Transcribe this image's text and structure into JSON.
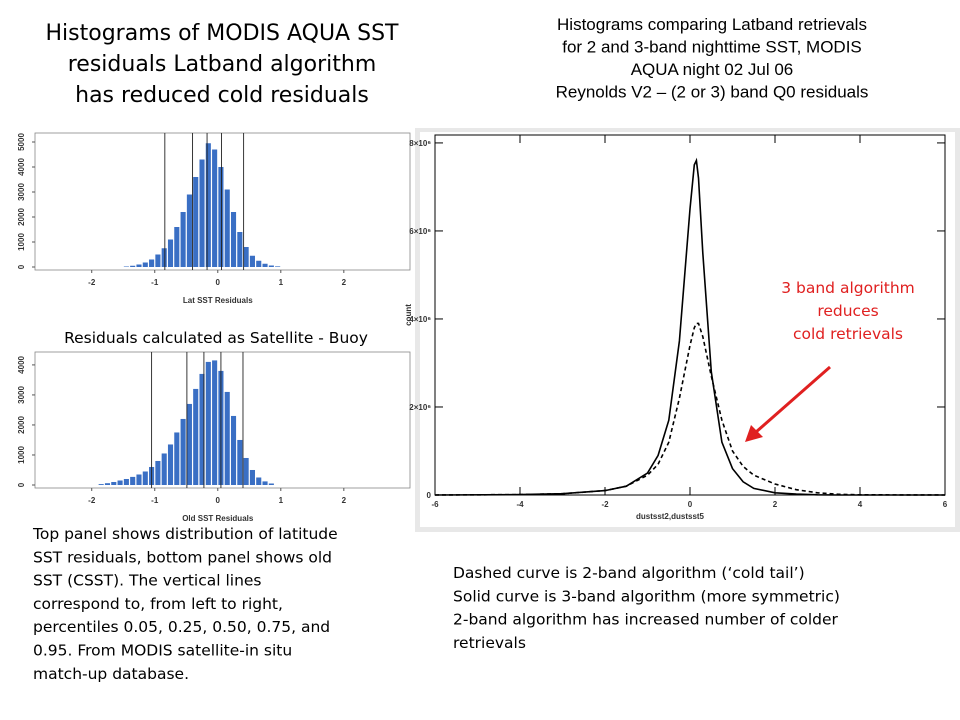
{
  "title_left": [
    "Histograms of MODIS AQUA SST",
    "residuals Latband algorithm",
    "has reduced cold residuals"
  ],
  "title_right": [
    "Histograms comparing Latband retrievals",
    "for 2 and 3-band nighttime SST, MODIS",
    "AQUA night 02 Jul 06",
    "Reynolds V2 – (2 or 3) band Q0 residuals"
  ],
  "middle_note": "Residuals calculated as Satellite - Buoy",
  "caption_left": [
    "Top panel shows distribution of latitude",
    "SST residuals, bottom panel shows old",
    "SST (CSST). The vertical lines",
    "correspond to, from left to right,",
    "percentiles 0.05, 0.25, 0.50, 0.75, and",
    "0.95.  From MODIS satellite-in situ",
    "match-up database."
  ],
  "caption_right": [
    "Dashed curve is 2-band algorithm (‘cold tail’)",
    "Solid curve is 3-band algorithm (more symmetric)",
    "2-band algorithm has increased number of colder",
    "retrievals"
  ],
  "annotation": [
    "3 band algorithm",
    "reduces",
    "cold retrievals"
  ],
  "chart_data": [
    {
      "type": "histogram",
      "x_label": "Lat SST Residuals",
      "bins": [
        -1.5,
        -1.4,
        -1.3,
        -1.2,
        -1.1,
        -1.0,
        -0.9,
        -0.8,
        -0.7,
        -0.6,
        -0.5,
        -0.4,
        -0.3,
        -0.2,
        -0.1,
        0.0,
        0.1,
        0.2,
        0.3,
        0.4,
        0.5,
        0.6,
        0.7,
        0.8,
        0.9,
        1.0
      ],
      "counts": [
        20,
        50,
        100,
        180,
        300,
        500,
        750,
        1100,
        1600,
        2200,
        2900,
        3600,
        4300,
        4950,
        4700,
        4000,
        3100,
        2200,
        1400,
        800,
        450,
        250,
        130,
        60,
        25
      ],
      "vlines": [
        -0.84,
        -0.4,
        -0.17,
        0.06,
        0.41
      ],
      "color": "#3a6fc4",
      "xlim": [
        -2.9,
        3.05
      ],
      "xticks": [
        -2,
        -1,
        0,
        1,
        2
      ],
      "ylim": [
        0,
        5360
      ],
      "yticks": [
        0,
        1000,
        2000,
        3000,
        4000,
        5000
      ]
    },
    {
      "type": "histogram",
      "x_label": "Old SST Residuals",
      "bins": [
        -1.9,
        -1.8,
        -1.7,
        -1.6,
        -1.5,
        -1.4,
        -1.3,
        -1.2,
        -1.1,
        -1.0,
        -0.9,
        -0.8,
        -0.7,
        -0.6,
        -0.5,
        -0.4,
        -0.3,
        -0.2,
        -0.1,
        0.0,
        0.1,
        0.2,
        0.3,
        0.4,
        0.5,
        0.6,
        0.7,
        0.8,
        0.9
      ],
      "counts": [
        30,
        60,
        100,
        150,
        200,
        270,
        350,
        450,
        600,
        800,
        1050,
        1350,
        1750,
        2200,
        2700,
        3200,
        3700,
        4100,
        4150,
        3800,
        3100,
        2300,
        1500,
        900,
        500,
        250,
        120,
        50
      ],
      "vlines": [
        -1.05,
        -0.49,
        -0.22,
        0.05,
        0.4
      ],
      "color": "#3a6fc4",
      "xlim": [
        -2.9,
        3.05
      ],
      "xticks": [
        -2,
        -1,
        0,
        1,
        2
      ],
      "ylim": [
        0,
        4430
      ],
      "yticks": [
        0,
        1000,
        2000,
        3000,
        4000
      ]
    },
    {
      "type": "line",
      "x_label": "dustsst2,dustsst5",
      "y_label": "count",
      "x": [
        -6,
        -4,
        -3,
        -2,
        -1.5,
        -1,
        -0.75,
        -0.5,
        -0.25,
        0,
        0.1,
        0.15,
        0.2,
        0.3,
        0.5,
        0.75,
        1,
        1.25,
        1.5,
        2,
        2.5,
        3,
        3.5,
        4,
        6
      ],
      "series": [
        {
          "color": "#000000",
          "dash": false,
          "values": [
            0,
            10000,
            30000,
            100000,
            200000,
            500000,
            900000,
            1700000,
            3500000,
            6500000,
            7500000,
            7600000,
            7200000,
            5500000,
            2800000,
            1200000,
            600000,
            300000,
            150000,
            50000,
            20000,
            5000,
            0,
            0,
            0
          ]
        },
        {
          "color": "#000000",
          "dash": true,
          "values": [
            0,
            10000,
            30000,
            100000,
            200000,
            450000,
            700000,
            1200000,
            2200000,
            3400000,
            3800000,
            3900000,
            3900000,
            3600000,
            2700000,
            1700000,
            1000000,
            650000,
            450000,
            250000,
            120000,
            50000,
            15000,
            5000,
            0
          ]
        }
      ],
      "xlim": [
        -6,
        6
      ],
      "xticks": [
        -6,
        -4,
        -2,
        0,
        2,
        4,
        6
      ],
      "ylim": [
        0,
        8180000
      ],
      "yticks": [
        0,
        {
          "value": 2000000,
          "label": "2×10⁶"
        },
        {
          "value": 4000000,
          "label": "4×10⁶"
        },
        {
          "value": 6000000,
          "label": "6×10⁶"
        },
        {
          "value": 8000000,
          "label": "8×10⁶"
        }
      ]
    }
  ]
}
